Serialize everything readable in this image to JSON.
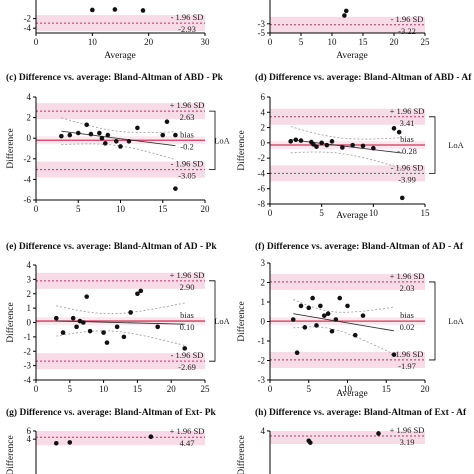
{
  "chart_data": [
    {
      "type": "scatter",
      "id": "a",
      "title": "",
      "xlabel": "Average",
      "ylabel": "",
      "xlim": [
        0,
        30
      ],
      "ylim": [
        -5,
        5
      ],
      "xticks": [
        0,
        10,
        20,
        30
      ],
      "yticks": [
        -4,
        -2
      ],
      "points": [
        [
          10,
          -0.2
        ],
        [
          14,
          -0.1
        ],
        [
          19,
          -0.3
        ]
      ],
      "bias": null,
      "upper": null,
      "lower": -2.93,
      "labels": {
        "lower_sd": "- 1.96 SD",
        "lower_val": "-2.93"
      }
    },
    {
      "type": "scatter",
      "id": "b",
      "title": "",
      "xlabel": "Average",
      "ylabel": "",
      "xlim": [
        0,
        25
      ],
      "ylim": [
        -5,
        5
      ],
      "xticks": [
        0,
        5,
        10,
        15,
        20,
        25
      ],
      "yticks": [
        -5,
        -3
      ],
      "points": [
        [
          12,
          -1.2
        ],
        [
          12.3,
          -0.2
        ]
      ],
      "bias": null,
      "upper": null,
      "lower": -3.22,
      "labels": {
        "lower_sd": "- 1.96 SD",
        "lower_val": "-3.22"
      }
    },
    {
      "type": "scatter",
      "id": "c",
      "title": "(c) Difference vs. average: Bland-Altman of ABD - Pk",
      "xlabel": "",
      "ylabel": "Difference",
      "xlim": [
        0,
        20
      ],
      "ylim": [
        -6,
        4
      ],
      "xticks": [
        0,
        5,
        10,
        15,
        20
      ],
      "yticks": [
        -6,
        -4,
        -2,
        0,
        2,
        4
      ],
      "points": [
        [
          3,
          0.2
        ],
        [
          4,
          0.3
        ],
        [
          5,
          0.5
        ],
        [
          6,
          1.3
        ],
        [
          6.5,
          0.4
        ],
        [
          7.5,
          0.5
        ],
        [
          7.8,
          0
        ],
        [
          8.2,
          -0.5
        ],
        [
          8.5,
          0.3
        ],
        [
          9.5,
          -0.3
        ],
        [
          10,
          -0.8
        ],
        [
          11,
          -0.3
        ],
        [
          12,
          1
        ],
        [
          15,
          0.3
        ],
        [
          15.5,
          1.6
        ],
        [
          16.5,
          0.3
        ],
        [
          16.5,
          -4.9
        ]
      ],
      "bias": -0.2,
      "upper": 2.63,
      "lower": -3.05,
      "labels": {
        "upper_sd": "+ 1.96 SD",
        "upper_val": "2.63",
        "bias_label": "bias",
        "bias_val": "-0.2",
        "lower_sd": "- 1.96 SD",
        "lower_val": "-3.05",
        "loa": "LoA"
      }
    },
    {
      "type": "scatter",
      "id": "d",
      "title": "(d) Difference vs. average: Bland-Altman of ABD - Af",
      "xlabel": "Average",
      "ylabel": "Difference",
      "xlim": [
        0,
        15
      ],
      "ylim": [
        -8,
        6
      ],
      "xticks": [
        0,
        5,
        10,
        15
      ],
      "yticks": [
        -8,
        -6,
        -4,
        -2,
        0,
        2,
        4,
        6
      ],
      "points": [
        [
          2,
          0.2
        ],
        [
          2.5,
          0.4
        ],
        [
          3,
          0.3
        ],
        [
          4,
          0.1
        ],
        [
          4.2,
          -0.2
        ],
        [
          4.5,
          -0.5
        ],
        [
          5,
          0
        ],
        [
          5.5,
          -0.3
        ],
        [
          6,
          0.2
        ],
        [
          7,
          -0.6
        ],
        [
          8,
          -0.3
        ],
        [
          9,
          -0.4
        ],
        [
          10,
          -0.7
        ],
        [
          12,
          1.9
        ],
        [
          12.5,
          1.4
        ],
        [
          12.8,
          -7.2
        ]
      ],
      "bias": -0.28,
      "upper": 3.41,
      "lower": -3.99,
      "labels": {
        "upper_sd": "+ 1.96 SD",
        "upper_val": "3.41",
        "bias_label": "bias",
        "bias_val": "- 0.28",
        "lower_sd": "- 1.96 SD",
        "lower_val": "-3.99",
        "loa": "LoA"
      }
    },
    {
      "type": "scatter",
      "id": "e",
      "title": "(e) Difference vs. average: Bland-Altman of AD - Pk",
      "xlabel": "",
      "ylabel": "Difference",
      "xlim": [
        0,
        25
      ],
      "ylim": [
        -4,
        4
      ],
      "xticks": [
        0,
        5,
        10,
        15,
        20,
        25
      ],
      "yticks": [
        -4,
        -3,
        -2,
        -1,
        0,
        1,
        2,
        3,
        4
      ],
      "points": [
        [
          3,
          0.3
        ],
        [
          4,
          -0.7
        ],
        [
          5.5,
          0.3
        ],
        [
          6,
          -0.3
        ],
        [
          6.5,
          0.1
        ],
        [
          7,
          0
        ],
        [
          7.5,
          1.8
        ],
        [
          8,
          -0.6
        ],
        [
          10,
          -0.7
        ],
        [
          10.5,
          -1.4
        ],
        [
          12,
          -0.3
        ],
        [
          13,
          -1
        ],
        [
          14,
          0.7
        ],
        [
          15,
          2
        ],
        [
          15.5,
          2.2
        ],
        [
          18,
          -0.3
        ],
        [
          22,
          -1.8
        ]
      ],
      "bias": 0.1,
      "upper": 2.9,
      "lower": -2.69,
      "labels": {
        "upper_sd": "+ 1.96 SD",
        "upper_val": "2.90",
        "bias_label": "bias",
        "bias_val": "0.10",
        "lower_sd": "- 1.96 SD",
        "lower_val": "-2.69",
        "loa": "LoA"
      }
    },
    {
      "type": "scatter",
      "id": "f",
      "title": "(f) Difference vs. average: Bland-Altman of AD - Af",
      "xlabel": "Average",
      "ylabel": "Difference",
      "xlim": [
        0,
        20
      ],
      "ylim": [
        -3,
        3
      ],
      "xticks": [
        0,
        5,
        10,
        15,
        20
      ],
      "yticks": [
        -3,
        -2,
        -1,
        0,
        1,
        2,
        3
      ],
      "points": [
        [
          3,
          0.1
        ],
        [
          3.5,
          -1.6
        ],
        [
          4,
          0.8
        ],
        [
          4.5,
          -0.3
        ],
        [
          5,
          0.7
        ],
        [
          5.5,
          1.2
        ],
        [
          6,
          -0.2
        ],
        [
          6.5,
          0.8
        ],
        [
          7,
          0.3
        ],
        [
          7.5,
          0.4
        ],
        [
          8,
          -0.5
        ],
        [
          8.5,
          0.1
        ],
        [
          9,
          1.2
        ],
        [
          10,
          0.8
        ],
        [
          11,
          -0.7
        ],
        [
          12,
          0.3
        ],
        [
          16,
          -1.7
        ]
      ],
      "bias": 0.02,
      "upper": 2.03,
      "lower": -1.97,
      "labels": {
        "upper_sd": "+ 1.96 SD",
        "upper_val": "2.03",
        "bias_label": "bias",
        "bias_val": "0.02",
        "lower_sd": "- 1.96 SD",
        "lower_val": "-1.97",
        "loa": "LoA"
      }
    },
    {
      "type": "scatter",
      "id": "g",
      "title": "(g) Difference vs. average: Bland-Altman of Ext- Pk",
      "xlabel": "",
      "ylabel": "Difference",
      "xlim": [
        0,
        25
      ],
      "ylim": [
        -6,
        6
      ],
      "xticks": [],
      "yticks": [
        4,
        6
      ],
      "points": [
        [
          3,
          3
        ],
        [
          5,
          3.2
        ],
        [
          17,
          4.6
        ]
      ],
      "bias": null,
      "upper": 4.47,
      "lower": null,
      "labels": {
        "upper_sd": "+ 1.96 SD",
        "upper_val": "4.47"
      }
    },
    {
      "type": "scatter",
      "id": "h",
      "title": "(h) Difference vs. average: Bland-Altman of Ext - Af",
      "xlabel": "",
      "ylabel": "Difference",
      "xlim": [
        0,
        20
      ],
      "ylim": [
        -4,
        4
      ],
      "xticks": [],
      "yticks": [
        4
      ],
      "points": [
        [
          5,
          2.4
        ],
        [
          5.2,
          2.1
        ],
        [
          14,
          3.6
        ]
      ],
      "bias": null,
      "upper": 3.19,
      "lower": null,
      "labels": {
        "upper_sd": "+ 1.96 SD",
        "upper_val": "3.19"
      }
    }
  ],
  "colors": {
    "band": "#f7dbe6",
    "bias_line": "#d7335a",
    "loa_line": "#c0306a",
    "ci": "#999999",
    "point": "#111111"
  }
}
